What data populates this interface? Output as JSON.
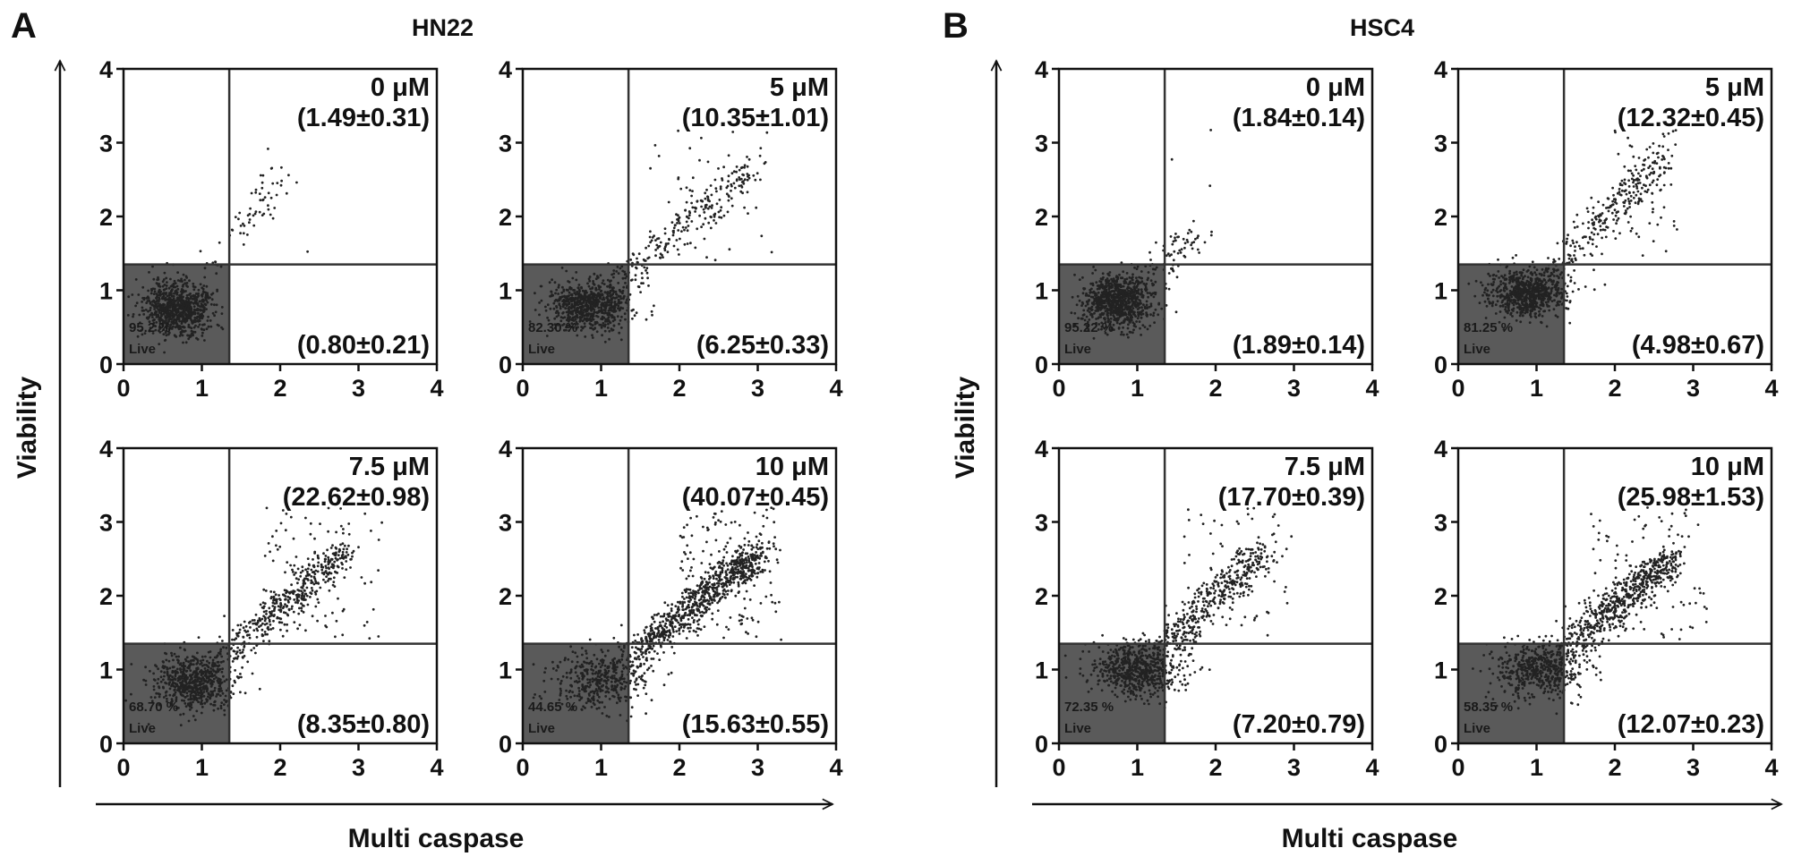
{
  "panels": [
    {
      "letter": "A",
      "title": "HN22",
      "xlabel": "Multi caspase",
      "ylabel": "Viability",
      "plots": [
        {
          "dose": "0 μM",
          "upper_right": "(1.49±0.31)",
          "lower_right": "(0.80±0.21)",
          "live_pct": "95.2 %",
          "live_text": "Live"
        },
        {
          "dose": "5 μM",
          "upper_right": "(10.35±1.01)",
          "lower_right": "(6.25±0.33)",
          "live_pct": "82.30 %",
          "live_text": "Live"
        },
        {
          "dose": "7.5 μM",
          "upper_right": "(22.62±0.98)",
          "lower_right": "(8.35±0.80)",
          "live_pct": "68.70 %",
          "live_text": "Live"
        },
        {
          "dose": "10 μM",
          "upper_right": "(40.07±0.45)",
          "lower_right": "(15.63±0.55)",
          "live_pct": "44.65 %",
          "live_text": "Live"
        }
      ]
    },
    {
      "letter": "B",
      "title": "HSC4",
      "xlabel": "Multi caspase",
      "ylabel": "Viability",
      "plots": [
        {
          "dose": "0 μM",
          "upper_right": "(1.84±0.14)",
          "lower_right": "(1.89±0.14)",
          "live_pct": "95.22 %",
          "live_text": "Live"
        },
        {
          "dose": "5 μM",
          "upper_right": "(12.32±0.45)",
          "lower_right": "(4.98±0.67)",
          "live_pct": "81.25 %",
          "live_text": "Live"
        },
        {
          "dose": "7.5 μM",
          "upper_right": "(17.70±0.39)",
          "lower_right": "(7.20±0.79)",
          "live_pct": "72.35 %",
          "live_text": "Live"
        },
        {
          "dose": "10 μM",
          "upper_right": "(25.98±1.53)",
          "lower_right": "(12.07±0.23)",
          "live_pct": "58.35 %",
          "live_text": "Live"
        }
      ]
    }
  ],
  "colors": {
    "live_gate": "#5a5a5a",
    "dot": "#222222",
    "gate_line": "#333333",
    "axis": "#111111"
  },
  "chart_data": {
    "type": "scatter",
    "xlabel": "Multi caspase",
    "ylabel": "Viability",
    "xlim": [
      0,
      4
    ],
    "ylim": [
      0,
      4
    ],
    "xticks": [
      "0",
      "1",
      "2",
      "3",
      "4"
    ],
    "yticks": [
      "0",
      "1",
      "2",
      "3",
      "4"
    ],
    "quadrant_gates": {
      "x": 1.35,
      "y": 1.35
    },
    "live_gate": {
      "x": [
        0,
        1.35
      ],
      "y": [
        0,
        1.35
      ]
    },
    "plots": [
      {
        "cell_line": "HN22",
        "dose": "0 μM",
        "live_percent": 95.2,
        "late_apoptotic_dead": {
          "mean": 1.49,
          "sd": 0.31
        },
        "apoptotic": {
          "mean": 0.8,
          "sd": 0.21
        },
        "live_cluster": {
          "cx": 0.7,
          "cy": 0.75,
          "sx": 0.22,
          "sy": 0.18
        },
        "diagonal_end": [
          2.0,
          2.6
        ],
        "scatter_upper_x": [
          1.2,
          2.4
        ]
      },
      {
        "cell_line": "HN22",
        "dose": "5 μM",
        "live_percent": 82.3,
        "late_apoptotic_dead": {
          "mean": 10.35,
          "sd": 1.01
        },
        "apoptotic": {
          "mean": 6.25,
          "sd": 0.33
        },
        "live_cluster": {
          "cx": 0.85,
          "cy": 0.8,
          "sx": 0.25,
          "sy": 0.17
        },
        "diagonal_end": [
          2.9,
          2.6
        ],
        "scatter_upper_x": [
          1.5,
          3.2
        ]
      },
      {
        "cell_line": "HN22",
        "dose": "7.5 μM",
        "live_percent": 68.7,
        "late_apoptotic_dead": {
          "mean": 22.62,
          "sd": 0.98
        },
        "apoptotic": {
          "mean": 8.35,
          "sd": 0.8
        },
        "live_cluster": {
          "cx": 0.9,
          "cy": 0.82,
          "sx": 0.25,
          "sy": 0.18
        },
        "diagonal_end": [
          2.8,
          2.6
        ],
        "scatter_upper_x": [
          1.8,
          3.3
        ]
      },
      {
        "cell_line": "HN22",
        "dose": "10 μM",
        "live_percent": 44.65,
        "late_apoptotic_dead": {
          "mean": 40.07,
          "sd": 0.45
        },
        "apoptotic": {
          "mean": 15.63,
          "sd": 0.55
        },
        "live_cluster": {
          "cx": 1.0,
          "cy": 0.85,
          "sx": 0.3,
          "sy": 0.2
        },
        "diagonal_end": [
          3.0,
          2.6
        ],
        "scatter_upper_x": [
          2.0,
          3.3
        ]
      },
      {
        "cell_line": "HSC4",
        "dose": "0 μM",
        "live_percent": 95.22,
        "late_apoptotic_dead": {
          "mean": 1.84,
          "sd": 0.14
        },
        "apoptotic": {
          "mean": 1.89,
          "sd": 0.14
        },
        "live_cluster": {
          "cx": 0.75,
          "cy": 0.85,
          "sx": 0.22,
          "sy": 0.18
        },
        "diagonal_end": [
          1.7,
          1.7
        ],
        "scatter_upper_x": [
          1.3,
          2.0
        ]
      },
      {
        "cell_line": "HSC4",
        "dose": "5 μM",
        "live_percent": 81.25,
        "late_apoptotic_dead": {
          "mean": 12.32,
          "sd": 0.45
        },
        "apoptotic": {
          "mean": 4.98,
          "sd": 0.67
        },
        "live_cluster": {
          "cx": 0.9,
          "cy": 0.95,
          "sx": 0.25,
          "sy": 0.16
        },
        "diagonal_end": [
          2.6,
          2.8
        ],
        "scatter_upper_x": [
          1.8,
          2.8
        ]
      },
      {
        "cell_line": "HSC4",
        "dose": "7.5 μM",
        "live_percent": 72.35,
        "late_apoptotic_dead": {
          "mean": 17.7,
          "sd": 0.39
        },
        "apoptotic": {
          "mean": 7.2,
          "sd": 0.79
        },
        "live_cluster": {
          "cx": 1.0,
          "cy": 1.0,
          "sx": 0.28,
          "sy": 0.18
        },
        "diagonal_end": [
          2.6,
          2.6
        ],
        "scatter_upper_x": [
          1.6,
          3.0
        ]
      },
      {
        "cell_line": "HSC4",
        "dose": "10 μM",
        "live_percent": 58.35,
        "late_apoptotic_dead": {
          "mean": 25.98,
          "sd": 1.53
        },
        "apoptotic": {
          "mean": 12.07,
          "sd": 0.23
        },
        "live_cluster": {
          "cx": 1.05,
          "cy": 1.0,
          "sx": 0.3,
          "sy": 0.18
        },
        "diagonal_end": [
          2.7,
          2.5
        ],
        "scatter_upper_x": [
          1.6,
          3.2
        ]
      }
    ]
  }
}
